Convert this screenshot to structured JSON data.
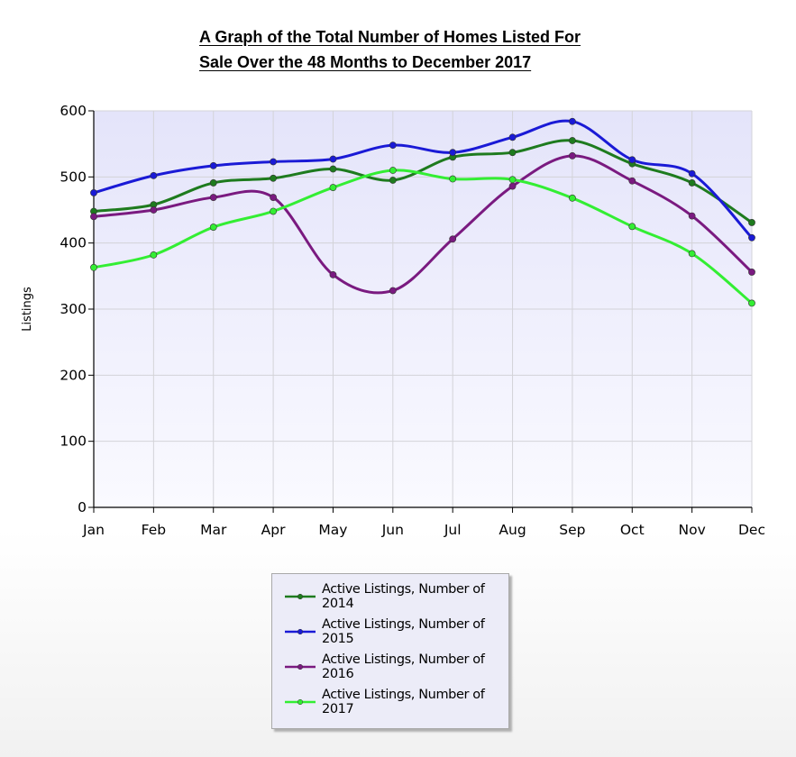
{
  "title": {
    "line1": "A Graph of the Total Number of Homes Listed For",
    "line2": "Sale Over the 48 Months to December 2017"
  },
  "chart_data": {
    "type": "line",
    "title": "A Graph of the Total Number of Homes Listed For Sale Over the 48 Months to December 2017",
    "xlabel": "",
    "ylabel": "Listings",
    "ylim": [
      0,
      600
    ],
    "yticks": [
      0,
      100,
      200,
      300,
      400,
      500,
      600
    ],
    "grid": true,
    "legend_position": "bottom",
    "smooth": true,
    "categories": [
      "Jan",
      "Feb",
      "Mar",
      "Apr",
      "May",
      "Jun",
      "Jul",
      "Aug",
      "Sep",
      "Oct",
      "Nov",
      "Dec"
    ],
    "series": [
      {
        "name": "Active Listings, Number of 2014",
        "color": "#1e7b1e",
        "values": [
          448,
          458,
          491,
          498,
          512,
          495,
          530,
          537,
          555,
          520,
          491,
          431
        ]
      },
      {
        "name": "Active Listings, Number of 2015",
        "color": "#1a1ad6",
        "values": [
          476,
          502,
          517,
          523,
          527,
          548,
          537,
          560,
          584,
          526,
          505,
          408
        ]
      },
      {
        "name": "Active Listings, Number of 2016",
        "color": "#7a1a80",
        "values": [
          440,
          450,
          469,
          469,
          352,
          328,
          406,
          486,
          532,
          494,
          441,
          356
        ]
      },
      {
        "name": "Active Listings, Number of 2017",
        "color": "#33ee33",
        "values": [
          363,
          382,
          424,
          448,
          484,
          510,
          497,
          496,
          468,
          425,
          384,
          309
        ]
      }
    ]
  }
}
